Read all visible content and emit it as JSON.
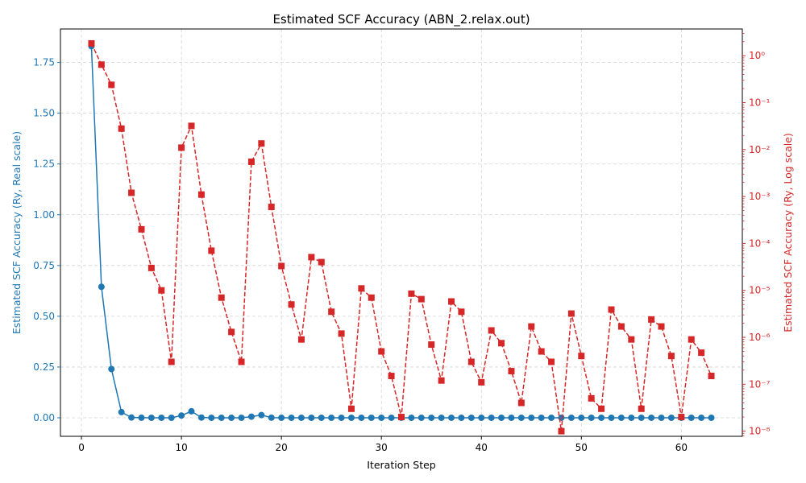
{
  "chart_data": {
    "type": "line",
    "title": "Estimated SCF Accuracy (ABN_2.relax.out)",
    "xlabel": "Iteration Step",
    "ylabel_left": "Estimated SCF Accuracy (Ry, Real scale)",
    "ylabel_right": "Estimated SCF Accuracy (Ry, Log scale)",
    "x_ticks": [
      "0",
      "10",
      "20",
      "30",
      "40",
      "50",
      "60"
    ],
    "y_left_ticks": [
      "0.00",
      "0.25",
      "0.50",
      "0.75",
      "1.00",
      "1.25",
      "1.50",
      "1.75"
    ],
    "y_right_ticks": [
      "10⁻⁸",
      "10⁻⁷",
      "10⁻⁶",
      "10⁻⁵",
      "10⁻⁴",
      "10⁻³",
      "10⁻²",
      "10⁻¹",
      "10⁰"
    ],
    "xlim": [
      -2.1,
      66.1
    ],
    "ylim_left": [
      -0.0913,
      1.915
    ],
    "ylim_right_log10": [
      -8.11,
      0.57
    ],
    "grid": true,
    "colors": {
      "real": "#1f77b4",
      "log": "#d62728",
      "grid": "#b0b0b0"
    },
    "x": [
      1,
      2,
      3,
      4,
      5,
      6,
      7,
      8,
      9,
      10,
      11,
      12,
      13,
      14,
      15,
      16,
      17,
      18,
      19,
      20,
      21,
      22,
      23,
      24,
      25,
      26,
      27,
      28,
      29,
      30,
      31,
      32,
      33,
      34,
      35,
      36,
      37,
      38,
      39,
      40,
      41,
      42,
      43,
      44,
      45,
      46,
      47,
      48,
      49,
      50,
      51,
      52,
      53,
      54,
      55,
      56,
      57,
      58,
      59,
      60,
      61,
      62,
      63
    ],
    "series": [
      {
        "axis": "left",
        "style": "solid-circle",
        "values": [
          1.83,
          0.645,
          0.24,
          0.028,
          0.0012,
          0.0002,
          3e-05,
          1e-05,
          3e-07,
          0.011,
          0.032,
          0.0011,
          7e-05,
          7e-06,
          1.3e-06,
          3e-07,
          0.0055,
          0.0135,
          0.0006,
          3.3e-05,
          5e-06,
          9e-07,
          5.1e-05,
          4e-05,
          3.5e-06,
          1.2e-06,
          3e-08,
          1.1e-05,
          7e-06,
          5e-07,
          1.5e-07,
          2e-08,
          8.5e-06,
          6.5e-06,
          7e-07,
          1.2e-07,
          5.8e-06,
          3.5e-06,
          3e-07,
          1.1e-07,
          1.4e-06,
          7.5e-07,
          1.9e-07,
          4e-08,
          1.7e-06,
          5e-07,
          3e-07,
          1e-08,
          3.2e-06,
          4e-07,
          5e-08,
          3e-08,
          3.9e-06,
          1.7e-06,
          9e-07,
          3e-08,
          2.4e-06,
          1.7e-06,
          4e-07,
          2e-08,
          9e-07,
          4.7e-07,
          1.5e-07
        ]
      },
      {
        "axis": "right",
        "style": "dashed-square",
        "values": [
          1.83,
          0.645,
          0.24,
          0.028,
          0.0012,
          0.0002,
          3e-05,
          1e-05,
          3e-07,
          0.011,
          0.032,
          0.0011,
          7e-05,
          7e-06,
          1.3e-06,
          3e-07,
          0.0055,
          0.0135,
          0.0006,
          3.3e-05,
          5e-06,
          9e-07,
          5.1e-05,
          4e-05,
          3.5e-06,
          1.2e-06,
          3e-08,
          1.1e-05,
          7e-06,
          5e-07,
          1.5e-07,
          2e-08,
          8.5e-06,
          6.5e-06,
          7e-07,
          1.2e-07,
          5.8e-06,
          3.5e-06,
          3e-07,
          1.1e-07,
          1.4e-06,
          7.5e-07,
          1.9e-07,
          4e-08,
          1.7e-06,
          5e-07,
          3e-07,
          1e-08,
          3.2e-06,
          4e-07,
          5e-08,
          3e-08,
          3.9e-06,
          1.7e-06,
          9e-07,
          3e-08,
          2.4e-06,
          1.7e-06,
          4e-07,
          2e-08,
          9e-07,
          4.7e-07,
          1.5e-07
        ]
      }
    ]
  }
}
